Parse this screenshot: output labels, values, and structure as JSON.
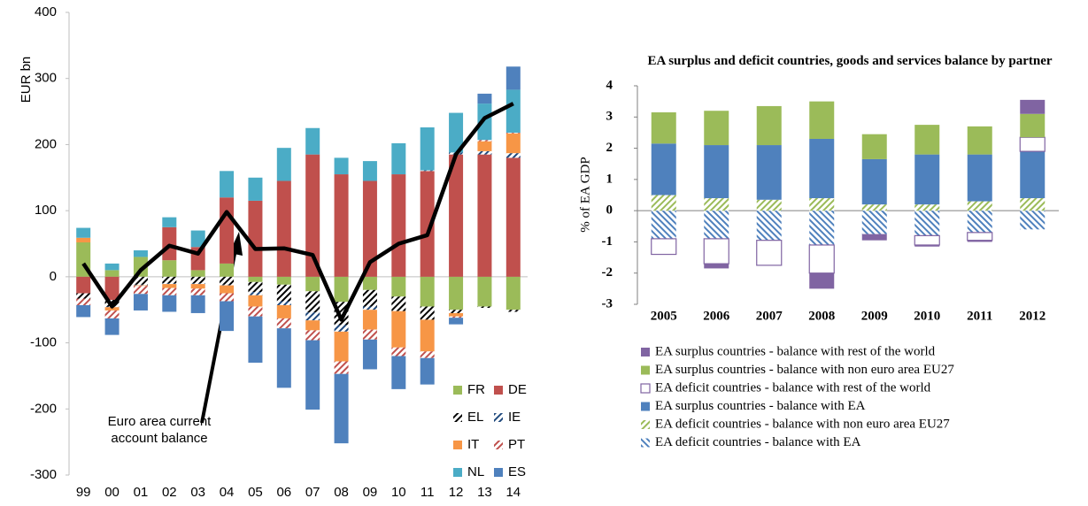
{
  "chart_data": [
    {
      "type": "bar",
      "stacked": true,
      "y_label": "EUR bn",
      "categories": [
        "99",
        "00",
        "01",
        "02",
        "03",
        "04",
        "05",
        "06",
        "07",
        "08",
        "09",
        "10",
        "11",
        "12",
        "13",
        "14"
      ],
      "ylim": [
        -300,
        400
      ],
      "yticks": [
        -300,
        -200,
        -100,
        0,
        100,
        200,
        300,
        400
      ],
      "series": [
        {
          "name": "FR",
          "color": "#9bbb59",
          "values": [
            52,
            10,
            30,
            25,
            10,
            20,
            -8,
            -12,
            -22,
            -38,
            -20,
            -30,
            -45,
            -50,
            -45,
            -50
          ]
        },
        {
          "name": "DE",
          "color": "#c0504d",
          "values": [
            -25,
            -35,
            0,
            50,
            35,
            100,
            115,
            145,
            185,
            155,
            145,
            155,
            160,
            185,
            185,
            180
          ]
        },
        {
          "name": "EL",
          "color": "#000000",
          "hatch": true,
          "values": [
            -8,
            -10,
            -12,
            -10,
            -10,
            -12,
            -15,
            -25,
            -32,
            -35,
            -25,
            -22,
            -20,
            -5,
            -2,
            -3
          ]
        },
        {
          "name": "IE",
          "color": "#1f497d",
          "hatch": true,
          "values": [
            0,
            -1,
            -1,
            -1,
            -1,
            -1,
            -5,
            -6,
            -12,
            -10,
            -5,
            0,
            1,
            3,
            5,
            7
          ]
        },
        {
          "name": "IT",
          "color": "#f79646",
          "values": [
            7,
            -5,
            -1,
            -6,
            -7,
            -12,
            -17,
            -20,
            -15,
            -45,
            -30,
            -55,
            -48,
            -5,
            15,
            30
          ]
        },
        {
          "name": "PT",
          "color": "#c0504d",
          "hatch": true,
          "values": [
            -10,
            -12,
            -12,
            -11,
            -10,
            -12,
            -15,
            -15,
            -15,
            -19,
            -15,
            -13,
            -10,
            -2,
            2,
            1
          ]
        },
        {
          "name": "NL",
          "color": "#4bacc6",
          "values": [
            15,
            10,
            10,
            15,
            25,
            40,
            35,
            50,
            40,
            25,
            30,
            47,
            65,
            60,
            55,
            65
          ]
        },
        {
          "name": "ES",
          "color": "#4f81bd",
          "values": [
            -18,
            -25,
            -25,
            -25,
            -27,
            -45,
            -70,
            -90,
            -105,
            -105,
            -45,
            -50,
            -40,
            -10,
            15,
            35
          ]
        }
      ],
      "line": {
        "color": "#000000",
        "values": [
          20,
          -45,
          10,
          47,
          35,
          98,
          42,
          43,
          33,
          -65,
          22,
          50,
          63,
          185,
          240,
          262
        ]
      },
      "annotation": "Euro area current account balance"
    },
    {
      "type": "bar",
      "stacked": true,
      "title": "EA surplus and deficit countries, goods and services balance by partner",
      "y_label": "% of EA GDP",
      "categories": [
        "2005",
        "2006",
        "2007",
        "2008",
        "2009",
        "2010",
        "2011",
        "2012"
      ],
      "ylim": [
        -3,
        4
      ],
      "yticks": [
        -3,
        -2,
        -1,
        0,
        1,
        2,
        3,
        4
      ],
      "series": [
        {
          "name": "EA surplus countries - balance with rest of the world",
          "color": "#8064a2",
          "values": [
            0,
            -0.15,
            0,
            -0.5,
            -0.2,
            -0.05,
            -0.05,
            0.45
          ]
        },
        {
          "name": "EA surplus countries - balance with non euro area EU27",
          "color": "#9bbb59",
          "values": [
            1.0,
            1.1,
            1.25,
            1.2,
            0.8,
            0.95,
            0.9,
            0.75
          ]
        },
        {
          "name": "EA deficit countries - balance with rest of the world",
          "color": "#8064a2",
          "hollow": true,
          "values": [
            -0.5,
            -0.8,
            -0.8,
            -0.9,
            0,
            -0.3,
            -0.25,
            0.45
          ]
        },
        {
          "name": "EA surplus countries - balance with EA",
          "color": "#4f81bd",
          "values": [
            1.65,
            1.7,
            1.75,
            1.9,
            1.45,
            1.6,
            1.5,
            1.5
          ]
        },
        {
          "name": "EA deficit countries - balance with non euro area EU27",
          "color": "#9bbb59",
          "hatch": true,
          "values": [
            0.5,
            0.4,
            0.35,
            0.4,
            0.2,
            0.2,
            0.3,
            0.4
          ]
        },
        {
          "name": "EA deficit countries - balance with EA",
          "color": "#4f81bd",
          "hatch": true,
          "values": [
            -0.9,
            -0.9,
            -0.95,
            -1.1,
            -0.75,
            -0.8,
            -0.7,
            -0.6
          ]
        }
      ]
    }
  ]
}
